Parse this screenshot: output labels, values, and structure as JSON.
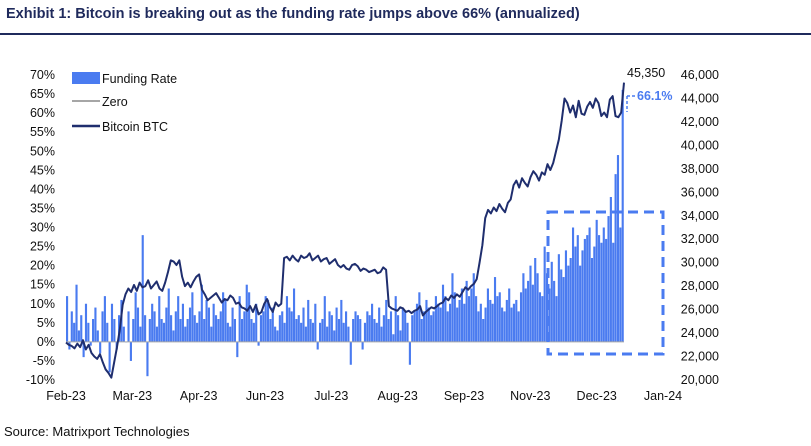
{
  "title": "Exhibit 1: Bitcoin is breaking out as the funding rate jumps above 66% (annualized)",
  "source": "Source: Matrixport Technologies",
  "legend": [
    {
      "label": "Funding Rate",
      "color": "#4a7bf0",
      "kind": "bar"
    },
    {
      "label": "Zero",
      "color": "#a6a6a6",
      "kind": "line"
    },
    {
      "label": "Bitcoin BTC",
      "color": "#1f2e6e",
      "kind": "line"
    }
  ],
  "annotations": {
    "btc_last": "45,350",
    "funding_last": "66.1%"
  },
  "chart_data": {
    "type": "bar",
    "title": "Exhibit 1: Bitcoin is breaking out as the funding rate jumps above 66% (annualized)",
    "grid": false,
    "legend_position": "top-left",
    "x_ticks": [
      "Feb-23",
      "Mar-23",
      "Apr-23",
      "Jun-23",
      "Jul-23",
      "Aug-23",
      "Sep-23",
      "Nov-23",
      "Dec-23",
      "Jan-24"
    ],
    "y_left": {
      "ticks": [
        "70%",
        "65%",
        "60%",
        "55%",
        "50%",
        "45%",
        "40%",
        "35%",
        "30%",
        "25%",
        "20%",
        "15%",
        "10%",
        "5%",
        "0%",
        "-5%",
        "-10%"
      ],
      "range": [
        -10,
        70
      ]
    },
    "y_right": {
      "ticks": [
        "46,000",
        "44,000",
        "42,000",
        "40,000",
        "38,000",
        "36,000",
        "34,000",
        "32,000",
        "30,000",
        "28,000",
        "26,000",
        "24,000",
        "22,000",
        "20,000"
      ],
      "range": [
        20000,
        46000
      ]
    },
    "series": [
      {
        "name": "Funding Rate",
        "type": "bar",
        "axis": "left",
        "unit": "% annualized",
        "values": [
          12,
          -2,
          8,
          5,
          15,
          3,
          7,
          -4,
          10,
          5,
          -1,
          6,
          9,
          3,
          -3,
          8,
          12,
          5,
          -8,
          10,
          6,
          -2,
          7,
          11,
          4,
          0,
          8,
          -5,
          6,
          13,
          9,
          4,
          28,
          7,
          -9,
          6,
          10,
          8,
          4,
          12,
          6,
          5,
          9,
          14,
          7,
          3,
          8,
          12,
          6,
          10,
          4,
          6,
          9,
          13,
          7,
          5,
          8,
          15,
          6,
          11,
          9,
          4,
          10,
          7,
          6,
          8,
          13,
          11,
          5,
          4,
          9,
          6,
          -4,
          12,
          6,
          8,
          15,
          13,
          6,
          5,
          10,
          -1,
          7,
          8,
          12,
          11,
          6,
          9,
          4,
          3,
          7,
          8,
          5,
          12,
          9,
          8,
          14,
          6,
          7,
          5,
          9,
          4,
          11,
          6,
          5,
          10,
          -2,
          5,
          6,
          12,
          4,
          8,
          7,
          3,
          9,
          6,
          11,
          5,
          8,
          4,
          -6,
          6,
          8,
          7,
          6,
          -2,
          5,
          8,
          7,
          10,
          6,
          5,
          9,
          4,
          7,
          11,
          6,
          8,
          2,
          12,
          7,
          3,
          9,
          8,
          5,
          -6,
          7,
          8,
          10,
          13,
          6,
          8,
          11,
          9,
          7,
          8,
          12,
          10,
          9,
          15,
          12,
          8,
          10,
          18,
          13,
          9,
          11,
          14,
          10,
          16,
          12,
          14,
          18,
          12,
          8,
          10,
          6,
          9,
          14,
          11,
          10,
          17,
          12,
          13,
          9,
          8,
          11,
          14,
          9,
          10,
          11,
          8,
          13,
          18,
          14,
          16,
          20,
          15,
          22,
          18,
          13,
          12,
          25,
          18,
          14,
          21,
          16,
          12,
          23,
          19,
          17,
          24,
          20,
          22,
          30,
          25,
          28,
          20,
          24,
          27,
          28,
          30,
          22,
          25,
          32,
          28,
          26,
          30,
          27,
          33,
          38,
          26,
          44,
          49,
          30,
          66.1
        ]
      },
      {
        "name": "Zero",
        "type": "line",
        "axis": "left",
        "values": [
          0
        ]
      },
      {
        "name": "Bitcoin BTC",
        "type": "line",
        "axis": "right",
        "values": [
          23200,
          23000,
          22900,
          22700,
          23100,
          22800,
          23400,
          22600,
          23000,
          22300,
          22000,
          21800,
          22200,
          21500,
          20900,
          20600,
          20200,
          21500,
          22800,
          24300,
          26400,
          27300,
          27800,
          27500,
          28100,
          27600,
          28300,
          27900,
          28000,
          28500,
          27800,
          28100,
          28400,
          27800,
          27600,
          28300,
          29200,
          30200,
          30100,
          29800,
          30200,
          28800,
          28000,
          28300,
          27900,
          28400,
          28800,
          29000,
          27700,
          27300,
          26800,
          27000,
          27200,
          27400,
          27000,
          26600,
          26900,
          26800,
          27200,
          27000,
          26500,
          26600,
          26200,
          26100,
          25900,
          26300,
          25800,
          26400,
          25600,
          25800,
          26500,
          26900,
          26200,
          25800,
          26600,
          26300,
          26500,
          30400,
          30500,
          30200,
          30600,
          30300,
          30100,
          30600,
          30400,
          30500,
          30800,
          30200,
          30400,
          30600,
          30100,
          30300,
          30400,
          29900,
          30100,
          30300,
          29800,
          29600,
          29800,
          29500,
          29400,
          29800,
          29900,
          29700,
          29300,
          29500,
          29400,
          29200,
          29300,
          29400,
          29100,
          29200,
          29600,
          29400,
          26300,
          26100,
          26000,
          25900,
          26200,
          26100,
          25800,
          25900,
          25700,
          25900,
          26000,
          26300,
          25500,
          25800,
          26000,
          26200,
          26100,
          26300,
          26500,
          26600,
          27000,
          26800,
          27200,
          27000,
          27300,
          27100,
          27500,
          27900,
          27700,
          28000,
          28200,
          28600,
          30000,
          31500,
          33800,
          34500,
          34200,
          34700,
          34400,
          35000,
          34600,
          34300,
          35100,
          35400,
          36600,
          37000,
          36400,
          37200,
          36800,
          36500,
          37300,
          37800,
          37500,
          37000,
          37700,
          37500,
          38400,
          37900,
          38500,
          39500,
          40500,
          42100,
          44000,
          43600,
          42800,
          43400,
          42400,
          43800,
          42700,
          42600,
          43300,
          43700,
          43200,
          44000,
          43600,
          42500,
          42800,
          42400,
          43900,
          44200,
          42500,
          42400,
          42800,
          45350
        ]
      }
    ]
  }
}
